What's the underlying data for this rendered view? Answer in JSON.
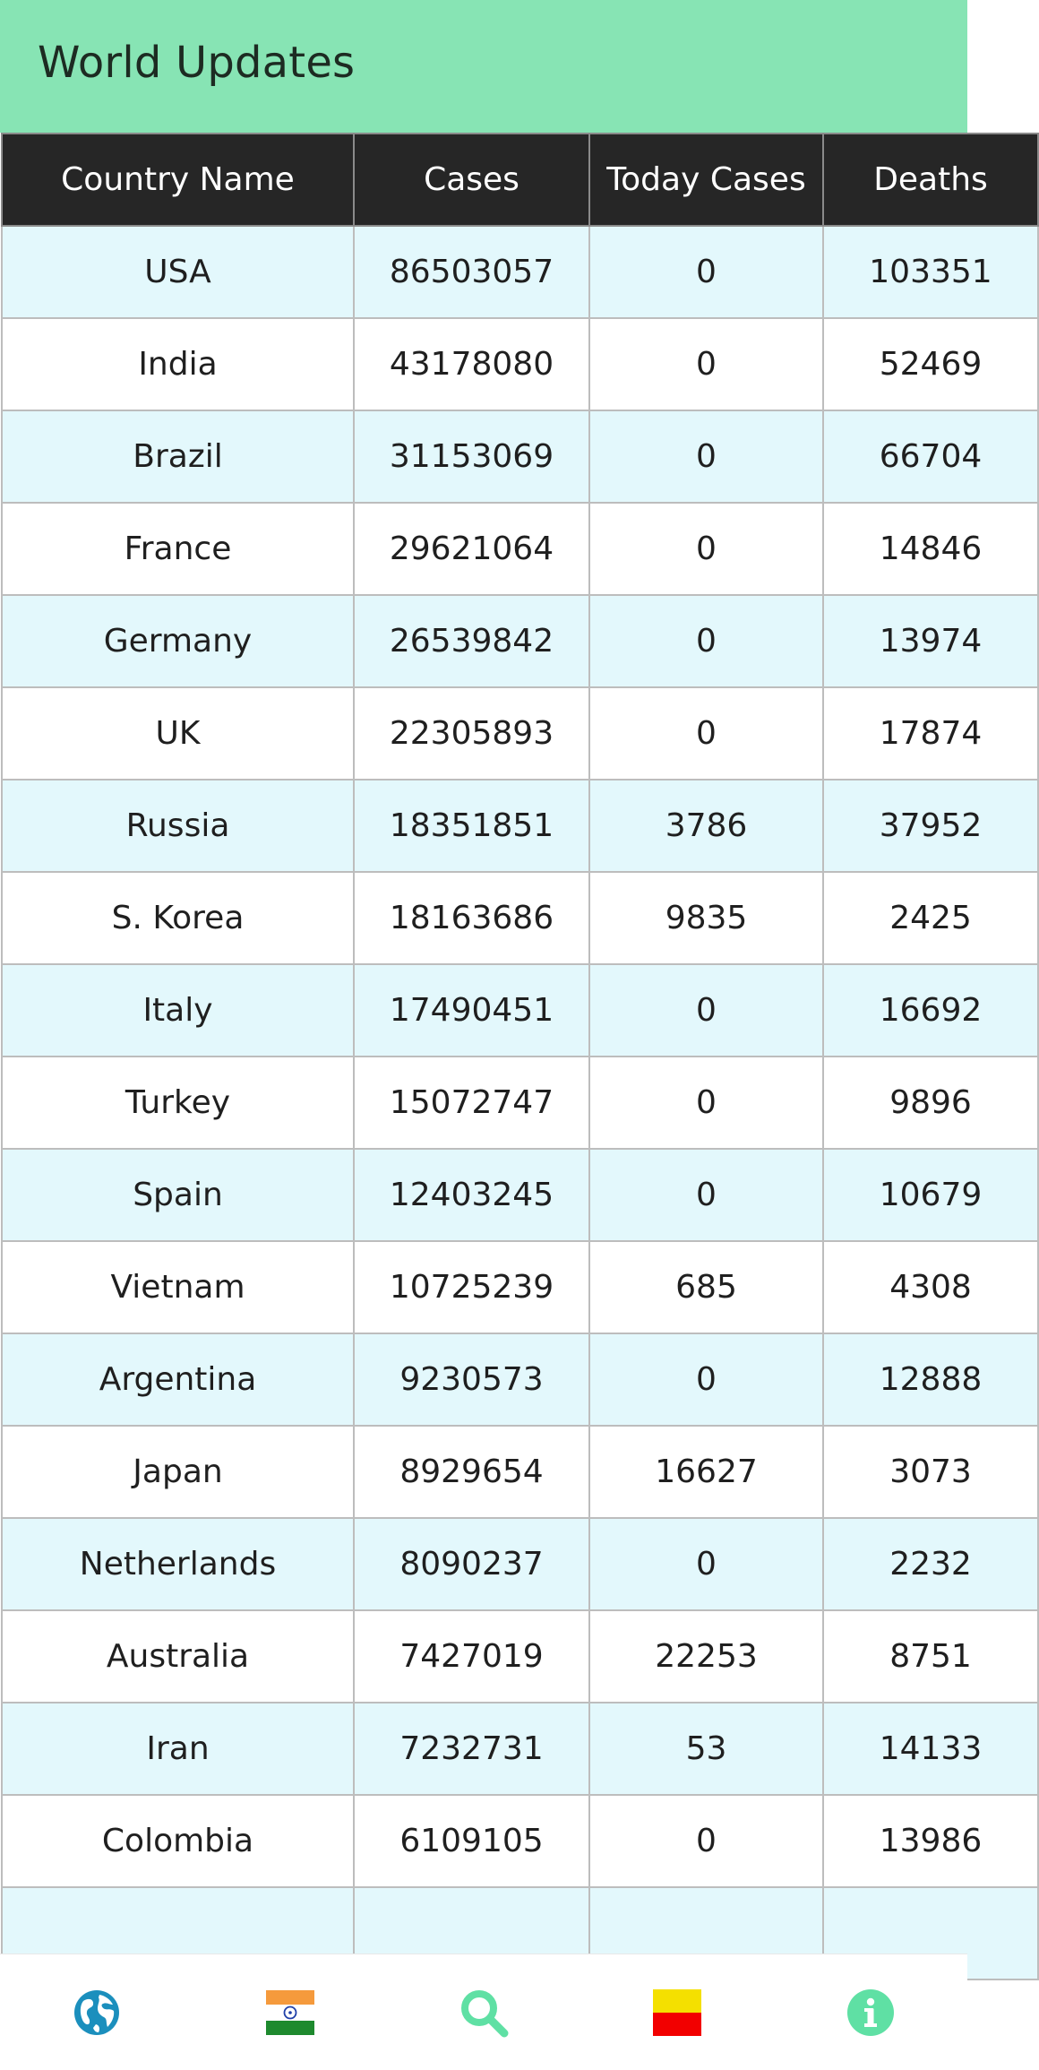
{
  "appbar": {
    "title": "World Updates",
    "color": "#87e4b4"
  },
  "table": {
    "headers": [
      "Country Name",
      "Cases",
      "Today Cases",
      "Deaths"
    ],
    "rows": [
      [
        "USA",
        "86503057",
        "0",
        "103351"
      ],
      [
        "India",
        "43178080",
        "0",
        "52469"
      ],
      [
        "Brazil",
        "31153069",
        "0",
        "66704"
      ],
      [
        "France",
        "29621064",
        "0",
        "14846"
      ],
      [
        "Germany",
        "26539842",
        "0",
        "13974"
      ],
      [
        "UK",
        "22305893",
        "0",
        "17874"
      ],
      [
        "Russia",
        "18351851",
        "3786",
        "37952"
      ],
      [
        "S. Korea",
        "18163686",
        "9835",
        "2425"
      ],
      [
        "Italy",
        "17490451",
        "0",
        "16692"
      ],
      [
        "Turkey",
        "15072747",
        "0",
        "9896"
      ],
      [
        "Spain",
        "12403245",
        "0",
        "10679"
      ],
      [
        "Vietnam",
        "10725239",
        "685",
        "4308"
      ],
      [
        "Argentina",
        "9230573",
        "0",
        "12888"
      ],
      [
        "Japan",
        "8929654",
        "16627",
        "3073"
      ],
      [
        "Netherlands",
        "8090237",
        "0",
        "2232"
      ],
      [
        "Australia",
        "7427019",
        "22253",
        "8751"
      ],
      [
        "Iran",
        "7232731",
        "53",
        "14133"
      ],
      [
        "Colombia",
        "6109105",
        "0",
        "13986"
      ],
      [
        "",
        "",
        "",
        ""
      ]
    ]
  },
  "bottom_nav": {
    "items": [
      {
        "icon": "globe-icon",
        "color": "#1b8fbd"
      },
      {
        "icon": "india-flag-icon",
        "colors": [
          "#f59a3c",
          "#ffffff",
          "#1e8a2e"
        ]
      },
      {
        "icon": "search-icon",
        "color": "#5fe0a4"
      },
      {
        "icon": "flag-icon",
        "colors": [
          "#f4e000",
          "#f20000"
        ]
      },
      {
        "icon": "info-icon",
        "color": "#5fe0a4"
      }
    ]
  }
}
